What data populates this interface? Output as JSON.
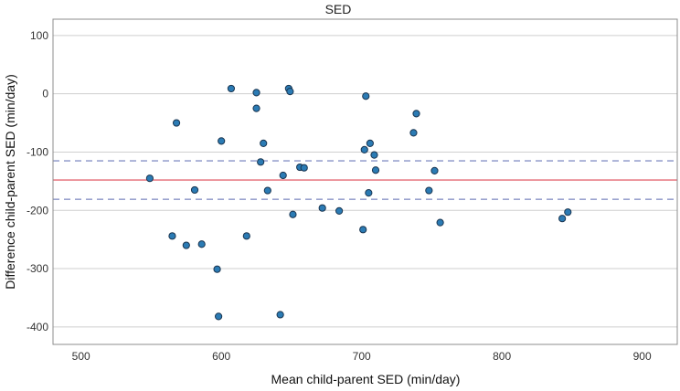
{
  "chart_data": {
    "type": "scatter",
    "title": "SED",
    "xlabel": "Mean child-parent SED (min/day)",
    "ylabel": "Difference child-parent SED (min/day)",
    "xlim": [
      480,
      925
    ],
    "ylim": [
      -430,
      128
    ],
    "xticks": [
      500,
      600,
      700,
      800,
      900
    ],
    "yticks": [
      100,
      0,
      -100,
      -200,
      -300,
      -400
    ],
    "xtick_labels": [
      "500",
      "600",
      "700",
      "800",
      "900"
    ],
    "ytick_labels": [
      "100",
      "0",
      "-100",
      "-200",
      "-300",
      "-400"
    ],
    "grid": "horizontal",
    "lines": [
      {
        "name": "mean difference",
        "y": -148,
        "style": "solid",
        "color": "#e8808a"
      },
      {
        "name": "upper limit",
        "y": -115,
        "style": "dashed",
        "color": "#9aa3cf"
      },
      {
        "name": "lower limit",
        "y": -181,
        "style": "dashed",
        "color": "#9aa3cf"
      }
    ],
    "point_color": "#2b7bb4",
    "points": [
      {
        "x": 549,
        "y": -145
      },
      {
        "x": 565,
        "y": -244
      },
      {
        "x": 568,
        "y": -50
      },
      {
        "x": 575,
        "y": -260
      },
      {
        "x": 581,
        "y": -165
      },
      {
        "x": 586,
        "y": -258
      },
      {
        "x": 597,
        "y": -301
      },
      {
        "x": 598,
        "y": -382
      },
      {
        "x": 600,
        "y": -81
      },
      {
        "x": 607,
        "y": 9
      },
      {
        "x": 618,
        "y": -244
      },
      {
        "x": 625,
        "y": 2
      },
      {
        "x": 625,
        "y": -25
      },
      {
        "x": 628,
        "y": -117
      },
      {
        "x": 630,
        "y": -85
      },
      {
        "x": 633,
        "y": -166
      },
      {
        "x": 642,
        "y": -379
      },
      {
        "x": 644,
        "y": -140
      },
      {
        "x": 648,
        "y": 9
      },
      {
        "x": 649,
        "y": 4
      },
      {
        "x": 651,
        "y": -207
      },
      {
        "x": 656,
        "y": -126
      },
      {
        "x": 659,
        "y": -127
      },
      {
        "x": 672,
        "y": -196
      },
      {
        "x": 684,
        "y": -201
      },
      {
        "x": 701,
        "y": -233
      },
      {
        "x": 702,
        "y": -96
      },
      {
        "x": 703,
        "y": -4
      },
      {
        "x": 705,
        "y": -170
      },
      {
        "x": 706,
        "y": -85
      },
      {
        "x": 709,
        "y": -105
      },
      {
        "x": 710,
        "y": -131
      },
      {
        "x": 737,
        "y": -67
      },
      {
        "x": 739,
        "y": -34
      },
      {
        "x": 748,
        "y": -166
      },
      {
        "x": 752,
        "y": -132
      },
      {
        "x": 756,
        "y": -221
      },
      {
        "x": 843,
        "y": -214
      },
      {
        "x": 847,
        "y": -203
      }
    ]
  }
}
